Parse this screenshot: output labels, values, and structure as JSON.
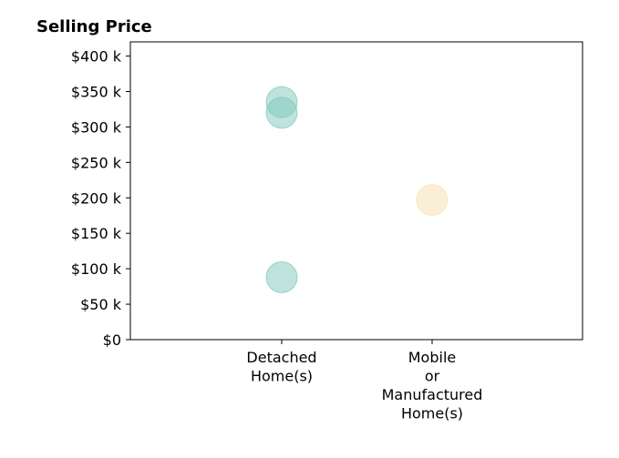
{
  "chart_data": {
    "type": "scatter",
    "title": "Selling Price",
    "xlabel": "",
    "ylabel": "",
    "categories": [
      [
        "Detached",
        "Home(s)"
      ],
      [
        "Mobile",
        "or",
        "Manufactured",
        "Home(s)"
      ]
    ],
    "y_ticks": [
      "$0",
      "$50 k",
      "$100 k",
      "$150 k",
      "$200 k",
      "$250 k",
      "$300 k",
      "$350 k",
      "$400 k"
    ],
    "y_tick_values": [
      0,
      50000,
      100000,
      150000,
      200000,
      250000,
      300000,
      350000,
      400000
    ],
    "ylim": [
      0,
      420000
    ],
    "grid": false,
    "points": [
      {
        "category_index": 0,
        "value": 335000,
        "color": "#7dc8bc"
      },
      {
        "category_index": 0,
        "value": 320000,
        "color": "#7dc8bc"
      },
      {
        "category_index": 0,
        "value": 88000,
        "color": "#7dc8bc"
      },
      {
        "category_index": 1,
        "value": 197000,
        "color": "#f5dfae"
      }
    ]
  }
}
